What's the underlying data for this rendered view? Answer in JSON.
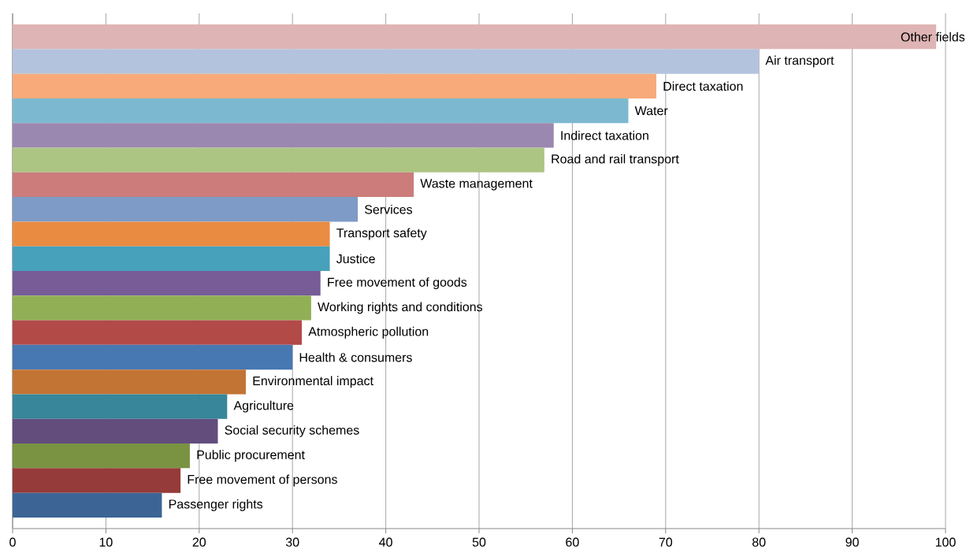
{
  "chart_data": {
    "type": "bar",
    "orientation": "horizontal",
    "categories": [
      "Other fields",
      "Air transport",
      "Direct taxation",
      "Water",
      "Indirect taxation",
      "Road and rail transport",
      "Waste management",
      "Services",
      "Transport safety",
      "Justice",
      "Free movement of goods",
      "Working rights and conditions",
      "Atmospheric pollution",
      "Health & consumers",
      "Environmental impact",
      "Agriculture",
      "Social security schemes",
      "Public procurement",
      "Free movement of persons",
      "Passenger rights"
    ],
    "values": [
      99,
      80,
      69,
      66,
      58,
      57,
      43,
      37,
      34,
      34,
      33,
      32,
      31,
      30,
      25,
      23,
      22,
      19,
      18,
      16
    ],
    "colors": [
      "#DFB4B4",
      "#B4C3DD",
      "#F8AA7A",
      "#7CB9D0",
      "#9B88B0",
      "#ADC583",
      "#CB7C7B",
      "#7E9BC7",
      "#E98C42",
      "#47A1BB",
      "#775C98",
      "#91AF55",
      "#B24A48",
      "#4778B1",
      "#C27435",
      "#37869A",
      "#624D7D",
      "#7A9343",
      "#953B39",
      "#3C6595"
    ],
    "xlim": [
      0,
      100
    ],
    "xticks": [
      0,
      10,
      20,
      30,
      40,
      50,
      60,
      70,
      80,
      90,
      100
    ],
    "grid": "x"
  }
}
